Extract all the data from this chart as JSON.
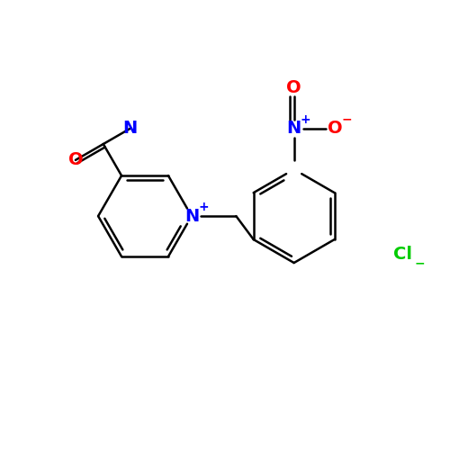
{
  "background_color": "#ffffff",
  "bond_color": "#000000",
  "bond_width": 1.8,
  "atom_colors": {
    "N": "#0000ff",
    "O": "#ff0000",
    "Cl": "#00cc00"
  },
  "font_size": 14,
  "sup_font_size": 10
}
